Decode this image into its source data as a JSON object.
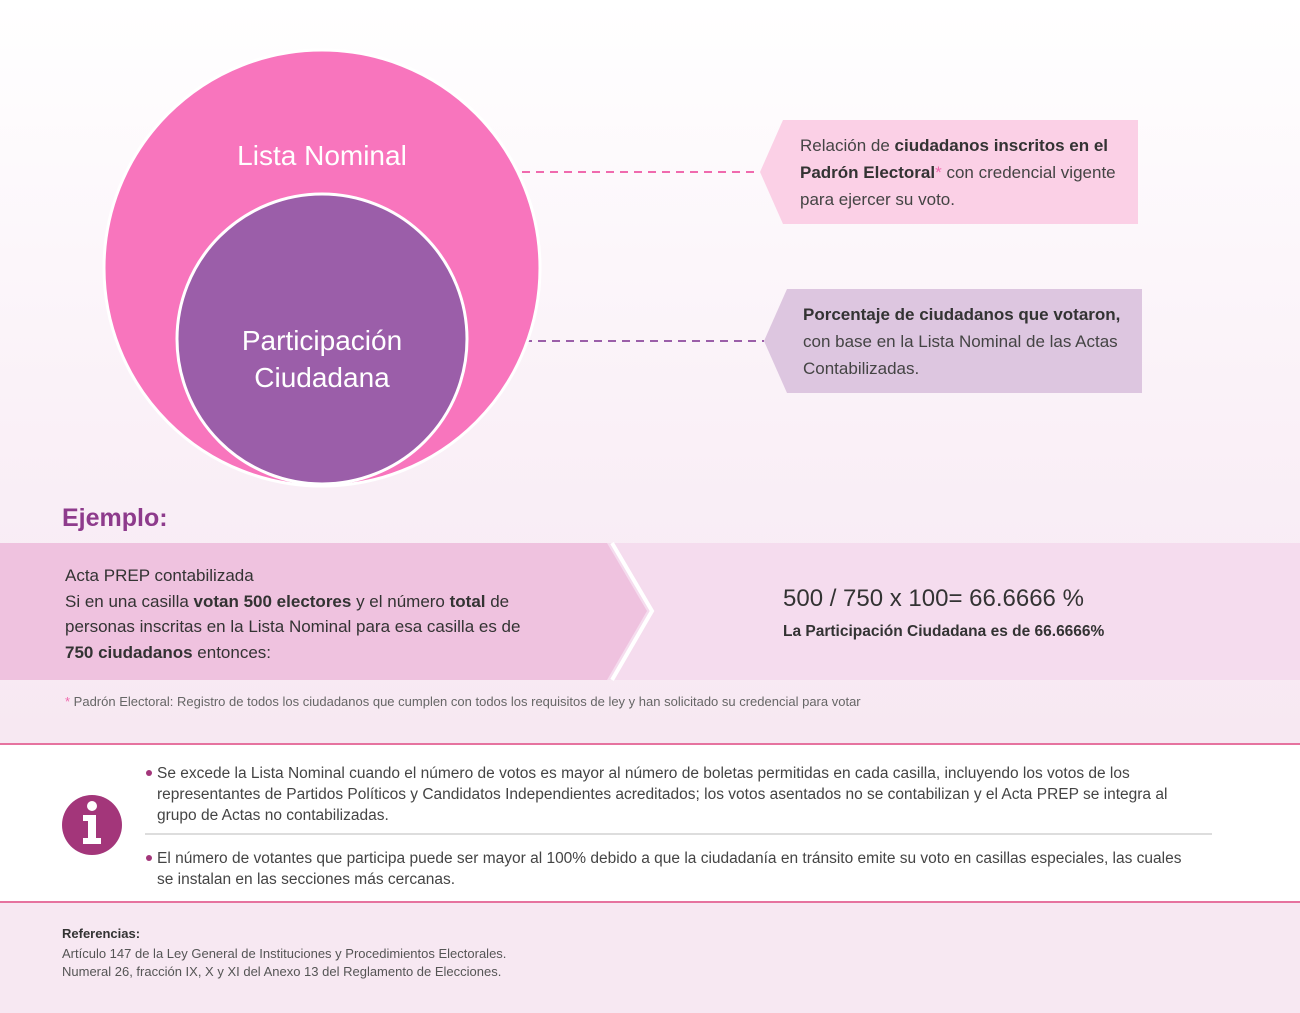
{
  "diagram": {
    "outer_label": "Lista Nominal",
    "inner_label": "Participación Ciudadana"
  },
  "callouts": [
    {
      "parts": [
        "Relación de ",
        "ciudadanos inscritos en el Padrón Electoral",
        "*",
        " con credencial vigente para ejercer su voto."
      ]
    },
    {
      "parts": [
        "Porcentaje de ciudadanos que votaron,",
        " con base en la Lista Nominal de las Actas Contabilizadas."
      ]
    }
  ],
  "example": {
    "title": "Ejemplo:",
    "heading": "Acta PREP contabilizada",
    "parts": [
      "Si en una casilla ",
      "votan 500 electores",
      " y el número ",
      "total",
      " de personas inscritas en la Lista Nominal para esa casilla es de ",
      "750 ciudadanos",
      " entonces:"
    ],
    "formula": "500 / 750 x 100= 66.6666 %",
    "result": "La Participación Ciudadana es de 66.6666%"
  },
  "footnote": {
    "mark": "*",
    "text": " Padrón Electoral: Registro de todos los ciudadanos que cumplen con todos los requisitos de ley y han solicitado su credencial para votar"
  },
  "notes": [
    "Se excede la Lista Nominal cuando el número de votos es mayor al número de boletas permitidas en cada casilla, incluyendo los votos de los representantes de Partidos Políticos y Candidatos Independientes acreditados; los votos asentados no se contabilizan y el Acta PREP se integra al grupo de Actas no contabilizadas.",
    "El número de votantes que participa puede ser mayor al 100% debido a que la ciudadanía en tránsito emite su voto en casillas especiales, las cuales se instalan en las secciones más cercanas."
  ],
  "references": {
    "title": "Referencias:",
    "items": [
      "Artículo 147 de la Ley General de Instituciones y Procedimientos Electorales.",
      "Numeral 26, fracción IX, X y XI del Anexo 13 del Reglamento de Elecciones."
    ]
  }
}
